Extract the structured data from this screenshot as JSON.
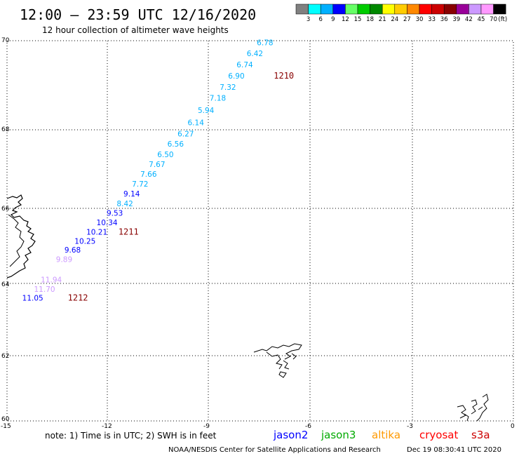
{
  "header": {
    "title": "12:00 – 23:59 UTC 12/16/2020",
    "subtitle": "12 hour collection of altimeter wave heights"
  },
  "legend": {
    "colors": [
      "#808080",
      "#00ffff",
      "#00b0ff",
      "#0000ff",
      "#66ff66",
      "#00cc00",
      "#008800",
      "#ffff00",
      "#ffcc00",
      "#ff8800",
      "#ff0000",
      "#cc0000",
      "#880000",
      "#990099",
      "#cc99ff",
      "#ff99ff",
      "#000000"
    ],
    "labels": [
      "3",
      "6",
      "9",
      "12",
      "15",
      "18",
      "21",
      "24",
      "27",
      "30",
      "33",
      "36",
      "39",
      "42",
      "45",
      "70"
    ],
    "unit_label": "(ft)"
  },
  "axes": {
    "y_ticks": [
      "70",
      "68",
      "66",
      "64",
      "62",
      "60"
    ],
    "x_ticks": [
      "-15",
      "-12",
      "-9",
      "-6",
      "-3",
      "0"
    ]
  },
  "track": {
    "points": [
      {
        "value": "6.78",
        "lon": -7.6,
        "lat": 69.9,
        "color": "#00b0ff"
      },
      {
        "value": "6.42",
        "lon": -7.9,
        "lat": 69.65,
        "color": "#00b0ff"
      },
      {
        "value": "6.74",
        "lon": -8.2,
        "lat": 69.4,
        "color": "#00b0ff"
      },
      {
        "value": "6.90",
        "lon": -8.45,
        "lat": 69.15,
        "color": "#00b0ff"
      },
      {
        "value": "7.32",
        "lon": -8.7,
        "lat": 68.9,
        "color": "#00b0ff"
      },
      {
        "value": "7.18",
        "lon": -9.0,
        "lat": 68.65,
        "color": "#00b0ff"
      },
      {
        "value": "5.94",
        "lon": -9.35,
        "lat": 68.38,
        "color": "#00b0ff"
      },
      {
        "value": "6.14",
        "lon": -9.65,
        "lat": 68.1,
        "color": "#00b0ff"
      },
      {
        "value": "6.27",
        "lon": -9.95,
        "lat": 67.83,
        "color": "#00b0ff"
      },
      {
        "value": "6.56",
        "lon": -10.25,
        "lat": 67.57,
        "color": "#00b0ff"
      },
      {
        "value": "6.50",
        "lon": -10.55,
        "lat": 67.3,
        "color": "#00b0ff"
      },
      {
        "value": "7.67",
        "lon": -10.8,
        "lat": 67.05,
        "color": "#00b0ff"
      },
      {
        "value": "7.66",
        "lon": -11.05,
        "lat": 66.8,
        "color": "#00b0ff"
      },
      {
        "value": "7.72",
        "lon": -11.3,
        "lat": 66.55,
        "color": "#00b0ff"
      },
      {
        "value": "9.14",
        "lon": -11.55,
        "lat": 66.3,
        "color": "#0000ff"
      },
      {
        "value": "8.42",
        "lon": -11.75,
        "lat": 66.05,
        "color": "#00b0ff"
      },
      {
        "value": "9.53",
        "lon": -12.05,
        "lat": 65.8,
        "color": "#0000ff"
      },
      {
        "value": "10.34",
        "lon": -12.35,
        "lat": 65.55,
        "color": "#0000ff"
      },
      {
        "value": "10.21",
        "lon": -12.65,
        "lat": 65.3,
        "color": "#0000ff"
      },
      {
        "value": "10.25",
        "lon": -13.0,
        "lat": 65.06,
        "color": "#0000ff"
      },
      {
        "value": "9.68",
        "lon": -13.3,
        "lat": 64.82,
        "color": "#0000ff"
      },
      {
        "value": "9.89",
        "lon": -13.55,
        "lat": 64.57,
        "color": "#cc99ff"
      },
      {
        "value": "11.94",
        "lon": -14.0,
        "lat": 64.03,
        "color": "#cc99ff"
      },
      {
        "value": "11.70",
        "lon": -14.2,
        "lat": 63.77,
        "color": "#cc99ff"
      },
      {
        "value": "11.05",
        "lon": -14.55,
        "lat": 63.52,
        "color": "#0000ff"
      }
    ],
    "time_labels": [
      {
        "text": "1210",
        "lon": -7.1,
        "lat": 69.15
      },
      {
        "text": "1211",
        "lon": -11.7,
        "lat": 65.3
      },
      {
        "text": "1212",
        "lon": -13.2,
        "lat": 63.52
      }
    ]
  },
  "footer": {
    "note": "note: 1) Time is in UTC; 2) SWH is in feet",
    "missions": [
      {
        "name": "jason2",
        "color": "#0000ff"
      },
      {
        "name": "jason3",
        "color": "#00aa00"
      },
      {
        "name": "altika",
        "color": "#ff9900"
      },
      {
        "name": "cryosat",
        "color": "#ff0000"
      },
      {
        "name": "s3a",
        "color": "#cc0000"
      }
    ],
    "credit": "NOAA/NESDIS Center for Satellite Applications and Research",
    "timestamp": "Dec 19 08:30:41 UTC 2020"
  }
}
